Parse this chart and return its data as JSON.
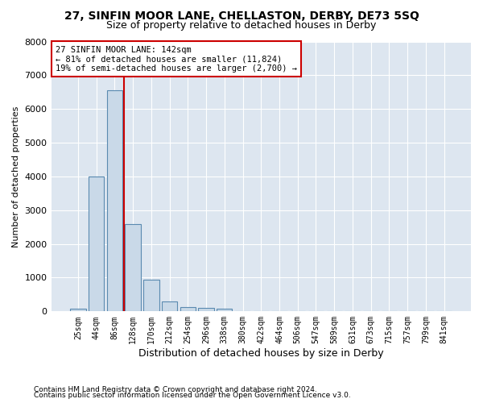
{
  "title": "27, SINFIN MOOR LANE, CHELLASTON, DERBY, DE73 5SQ",
  "subtitle": "Size of property relative to detached houses in Derby",
  "xlabel": "Distribution of detached houses by size in Derby",
  "ylabel": "Number of detached properties",
  "bar_color": "#c9d9e8",
  "bar_edge_color": "#5a8ab0",
  "background_color": "#dde6f0",
  "grid_color": "#ffffff",
  "figure_bg": "#ffffff",
  "categories": [
    "25sqm",
    "44sqm",
    "86sqm",
    "128sqm",
    "170sqm",
    "212sqm",
    "254sqm",
    "296sqm",
    "338sqm",
    "380sqm",
    "422sqm",
    "464sqm",
    "506sqm",
    "547sqm",
    "589sqm",
    "631sqm",
    "673sqm",
    "715sqm",
    "757sqm",
    "799sqm",
    "841sqm"
  ],
  "values": [
    75,
    4000,
    6550,
    2600,
    950,
    300,
    120,
    100,
    75,
    0,
    0,
    0,
    0,
    0,
    0,
    0,
    0,
    0,
    0,
    0,
    0
  ],
  "ylim": [
    0,
    8000
  ],
  "yticks": [
    0,
    1000,
    2000,
    3000,
    4000,
    5000,
    6000,
    7000,
    8000
  ],
  "vline_x": 2.5,
  "annotation_text": "27 SINFIN MOOR LANE: 142sqm\n← 81% of detached houses are smaller (11,824)\n19% of semi-detached houses are larger (2,700) →",
  "annotation_box_color": "#ffffff",
  "annotation_box_edge_color": "#cc0000",
  "vline_color": "#cc0000",
  "footnote1": "Contains HM Land Registry data © Crown copyright and database right 2024.",
  "footnote2": "Contains public sector information licensed under the Open Government Licence v3.0."
}
